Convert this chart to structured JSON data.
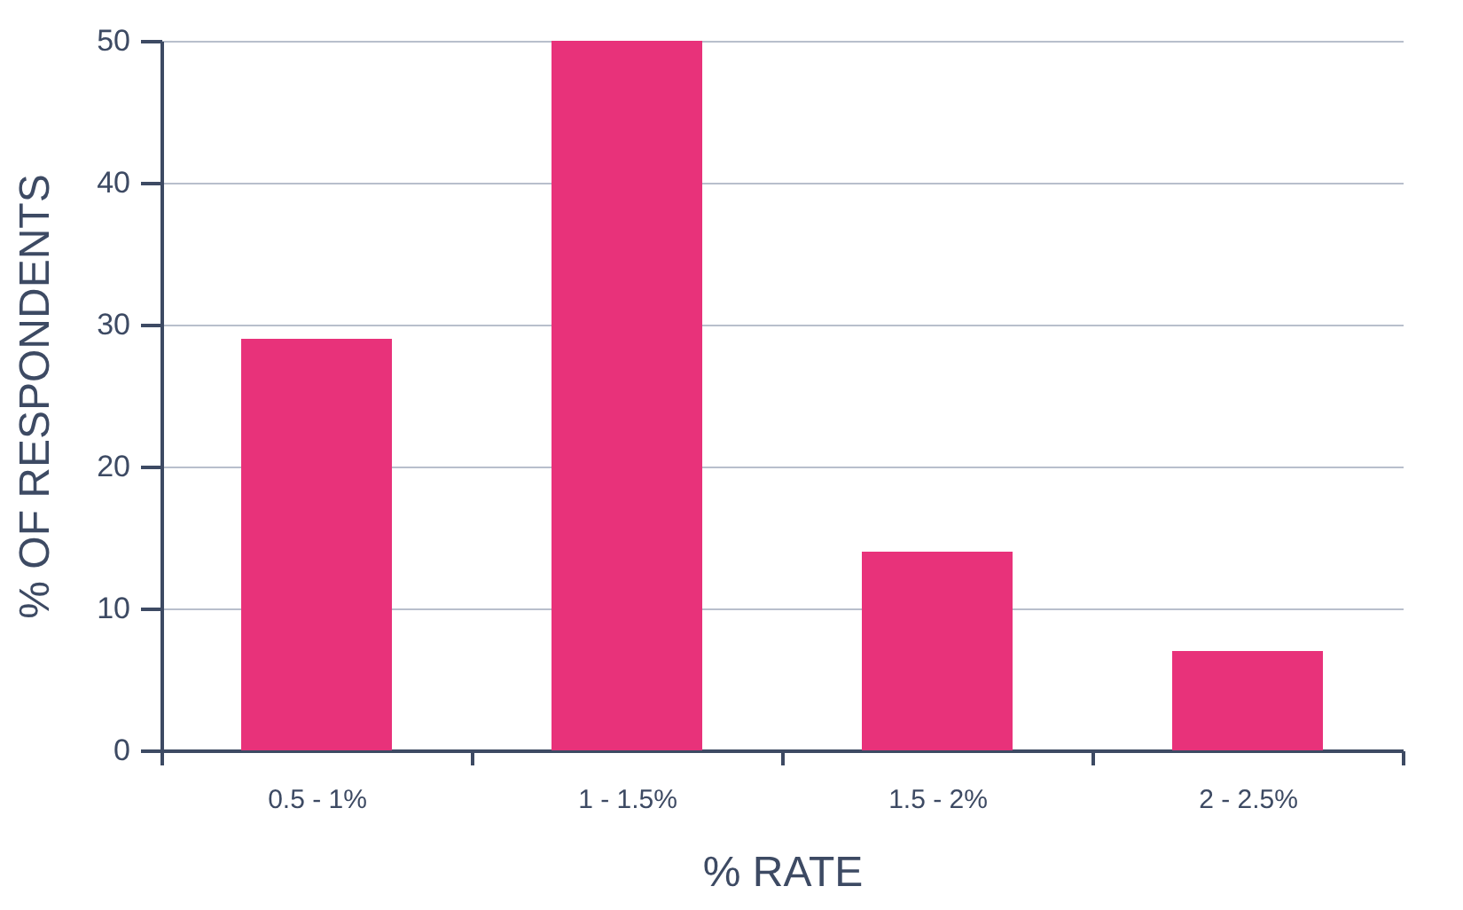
{
  "chart_data": {
    "type": "bar",
    "xlabel": "% RATE",
    "ylabel": "% OF RESPONDENTS",
    "categories": [
      "0.5 - 1%",
      "1 - 1.5%",
      "1.5 - 2%",
      "2 - 2.5%"
    ],
    "values": [
      29,
      50,
      14,
      7
    ],
    "color": "#e8327a",
    "ylim": [
      0,
      50
    ],
    "yticks": [
      0,
      10,
      20,
      30,
      40,
      50
    ],
    "grid": "y"
  }
}
